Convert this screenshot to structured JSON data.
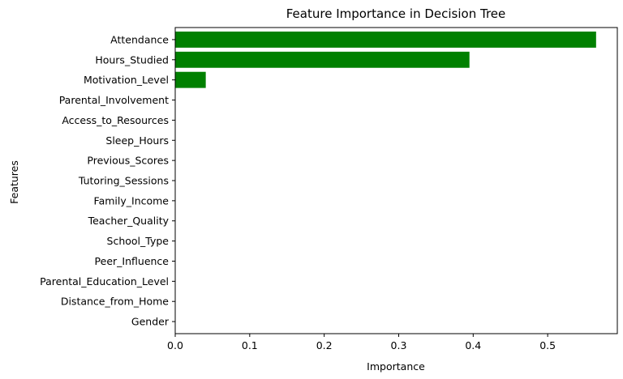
{
  "chart_data": {
    "type": "bar",
    "orientation": "horizontal",
    "title": "Feature Importance in Decision Tree",
    "xlabel": "Importance",
    "ylabel": "Features",
    "categories": [
      "Attendance",
      "Hours_Studied",
      "Motivation_Level",
      "Parental_Involvement",
      "Access_to_Resources",
      "Sleep_Hours",
      "Previous_Scores",
      "Tutoring_Sessions",
      "Family_Income",
      "Teacher_Quality",
      "School_Type",
      "Peer_Influence",
      "Parental_Education_Level",
      "Distance_from_Home",
      "Gender"
    ],
    "values": [
      0.565,
      0.395,
      0.041,
      0,
      0,
      0,
      0,
      0,
      0,
      0,
      0,
      0,
      0,
      0,
      0
    ],
    "xlim": [
      0,
      0.5935
    ],
    "xticks": [
      0.0,
      0.1,
      0.2,
      0.3,
      0.4,
      0.5
    ],
    "xtick_labels": [
      "0.0",
      "0.1",
      "0.2",
      "0.3",
      "0.4",
      "0.5"
    ],
    "bar_color": "#008000",
    "grid": false
  }
}
